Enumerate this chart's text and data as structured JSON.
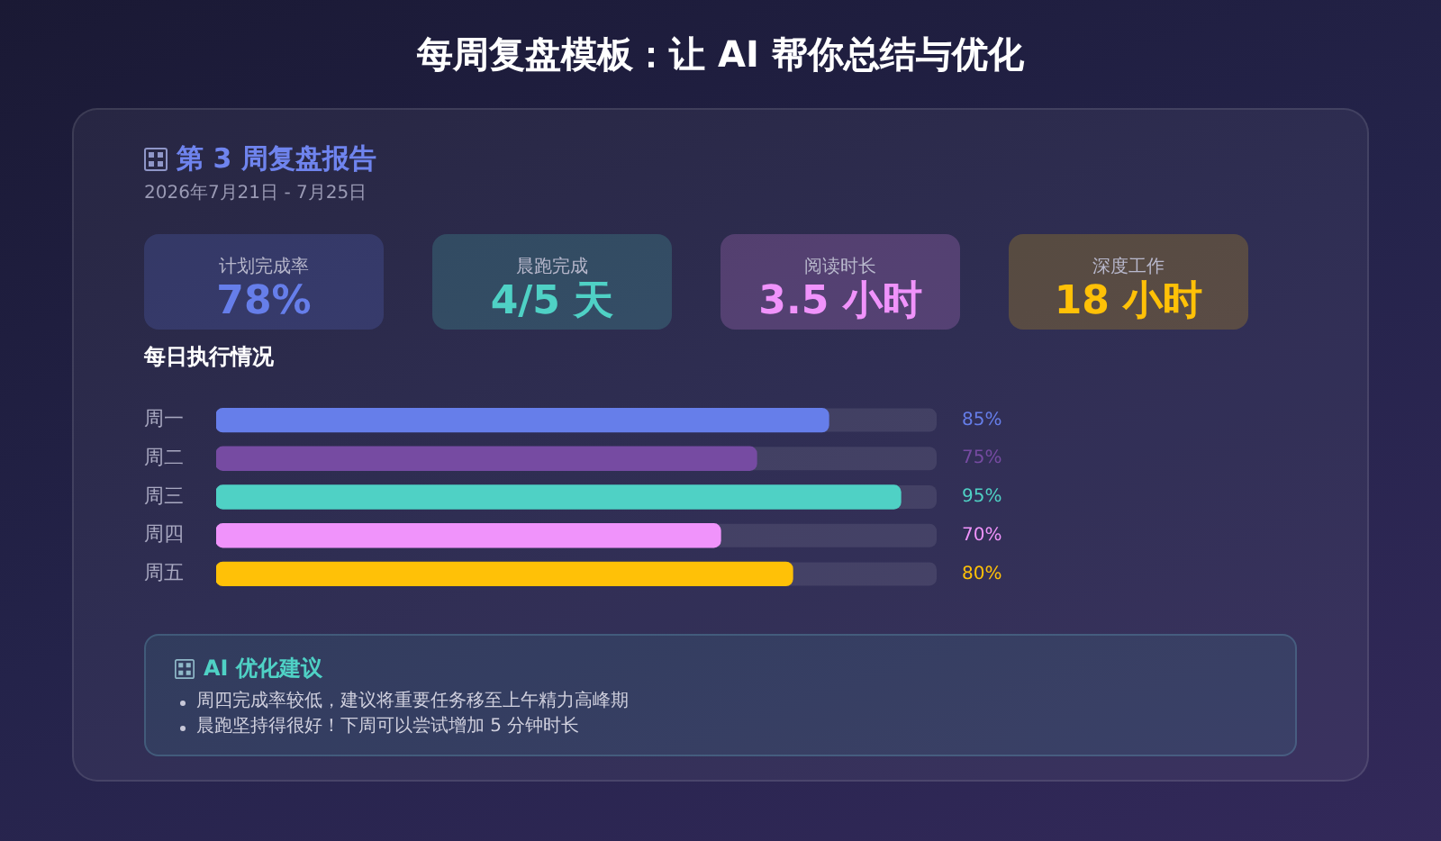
{
  "chart_data": [
    {
      "type": "other",
      "title": "每周复盘模板：让 AI 帮你总结与优化",
      "subtitle": "第 3 周复盘报告",
      "annotations": [
        "2026年7月21日 - 7月25日"
      ],
      "categories": [
        "计划完成率",
        "晨跑完成",
        "阅读时长",
        "深度工作"
      ],
      "value_labels": [
        "78%",
        "4/5 天",
        "3.5 小时",
        "18 小时"
      ],
      "colors": [
        "#667eea",
        "#4fd1c5",
        "#f093fb",
        "#ffc107"
      ]
    },
    {
      "type": "bar",
      "orientation": "horizontal",
      "title": "每日执行情况",
      "categories": [
        "周一",
        "周二",
        "周三",
        "周四",
        "周五"
      ],
      "values": [
        85,
        75,
        95,
        70,
        80
      ],
      "colors": [
        "#667eea",
        "#764ba2",
        "#4fd1c5",
        "#f093fb",
        "#ffc107"
      ],
      "value_labels": [
        "85%",
        "75%",
        "95%",
        "70%",
        "80%"
      ],
      "xlim": [
        0,
        100
      ],
      "tick_labels": "y"
    },
    {
      "type": "other",
      "title": "AI 优化建议",
      "annotations": [
        "周四完成率较低，建议将重要任务移至上午精力高峰期",
        "晨跑坚持得很好！下周可以尝试增加 5 分钟时长"
      ]
    }
  ]
}
